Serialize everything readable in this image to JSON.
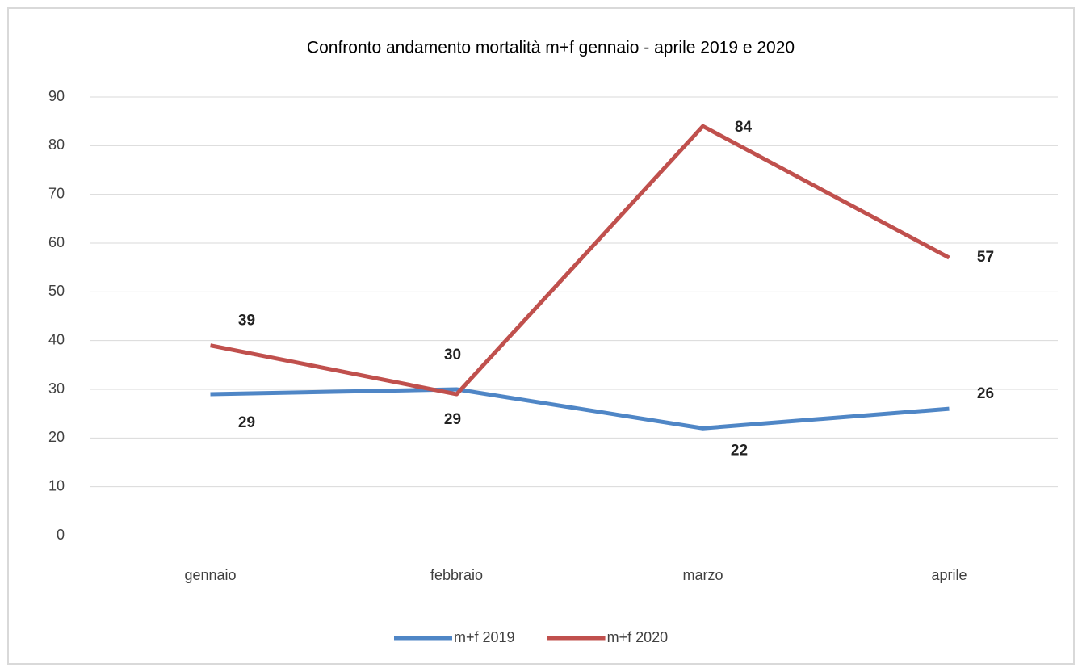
{
  "chart_data": {
    "type": "line",
    "title": "Confronto andamento mortalità m+f gennaio - aprile 2019 e 2020",
    "categories": [
      "gennaio",
      "febbraio",
      "marzo",
      "aprile"
    ],
    "series": [
      {
        "name": "m+f 2019",
        "color": "#4f86c6",
        "values": [
          29,
          30,
          22,
          26
        ]
      },
      {
        "name": "m+f 2020",
        "color": "#c0504d",
        "values": [
          39,
          29,
          84,
          57
        ]
      }
    ],
    "ylim": [
      0,
      90
    ],
    "yticks": [
      0,
      10,
      20,
      30,
      40,
      50,
      60,
      70,
      80,
      90
    ],
    "grid": true,
    "legend": "bottom"
  }
}
